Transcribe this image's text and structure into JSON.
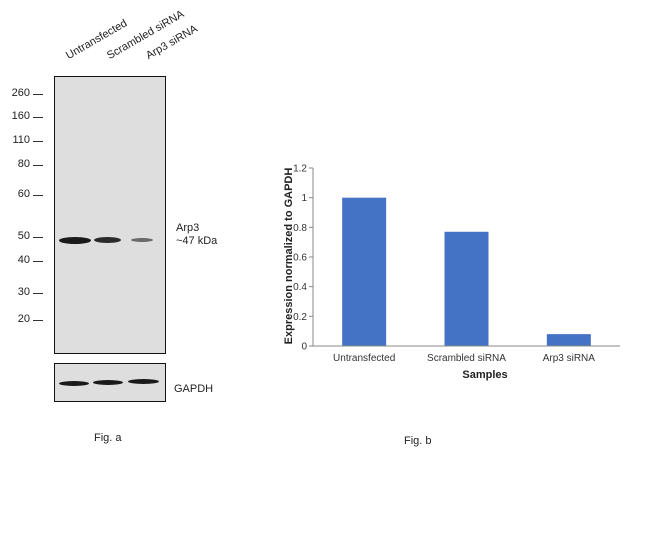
{
  "figure_a": {
    "lane_labels": [
      "Untransfected",
      "Scrambled siRNA",
      "Arp3 siRNA"
    ],
    "mw_markers": [
      "260",
      "160",
      "110",
      "80",
      "60",
      "50",
      "40",
      "30",
      "20"
    ],
    "target_label_line1": "Arp3",
    "target_label_line2": "~47 kDa",
    "loading_control_label": "GAPDH",
    "caption": "Fig. a"
  },
  "figure_b": {
    "caption": "Fig. b"
  },
  "chart_data": {
    "type": "bar",
    "categories": [
      "Untransfected",
      "Scrambled siRNA",
      "Arp3 siRNA"
    ],
    "values": [
      1.0,
      0.77,
      0.08
    ],
    "title": "",
    "xlabel": "Samples",
    "ylabel": "Expression  normalized to GAPDH",
    "ylim": [
      0,
      1.2
    ],
    "yticks": [
      "0",
      "0.2",
      "0.4",
      "0.6",
      "0.8",
      "1",
      "1.2"
    ],
    "bar_color": "#4472c4",
    "grid": false,
    "legend": "none"
  }
}
